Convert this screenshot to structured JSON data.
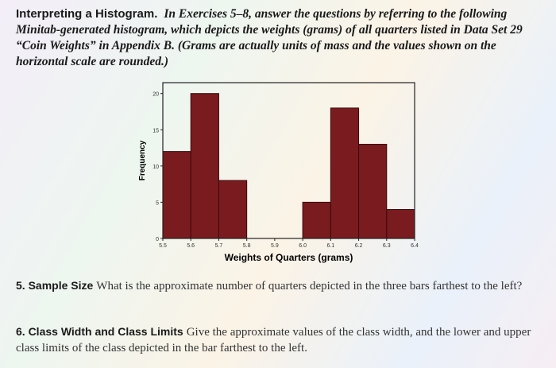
{
  "header": {
    "label": "Interpreting a Histogram.",
    "text": "In Exercises 5–8, answer the questions by referring to the following Minitab-generated histogram, which depicts the weights (grams) of all quarters listed in Data Set 29 “Coin Weights” in Appendix B. (Grams are actually units of mass and the values shown on the horizontal scale are rounded.)"
  },
  "chart_data": {
    "type": "histogram",
    "x_label": "Weights of Quarters (grams)",
    "y_label": "Frequency",
    "bins": [
      5.5,
      5.6,
      5.7,
      5.8,
      5.9,
      6.0,
      6.1,
      6.2,
      6.3,
      6.4
    ],
    "values": [
      12,
      20,
      8,
      0,
      0,
      5,
      18,
      13,
      4
    ],
    "color": "#7a1b1f",
    "xlim": [
      5.5,
      6.4
    ],
    "ylim": [
      0,
      21.5
    ],
    "xticks": [
      5.5,
      5.6,
      5.7,
      5.8,
      5.9,
      {
        "value": 6,
        "label": "6.0"
      },
      6.1,
      6.2,
      6.3,
      6.4
    ],
    "yticks": [
      0,
      5,
      10,
      15,
      20
    ]
  },
  "questions": [
    {
      "label": "5. Sample Size",
      "text": "What is the approximate number of quarters depicted in the three bars farthest to the left?"
    },
    {
      "label": "6. Class Width and Class Limits",
      "text": "Give the approximate values of the class width, and the lower and upper class limits of the class depicted in the bar farthest to the left."
    }
  ]
}
